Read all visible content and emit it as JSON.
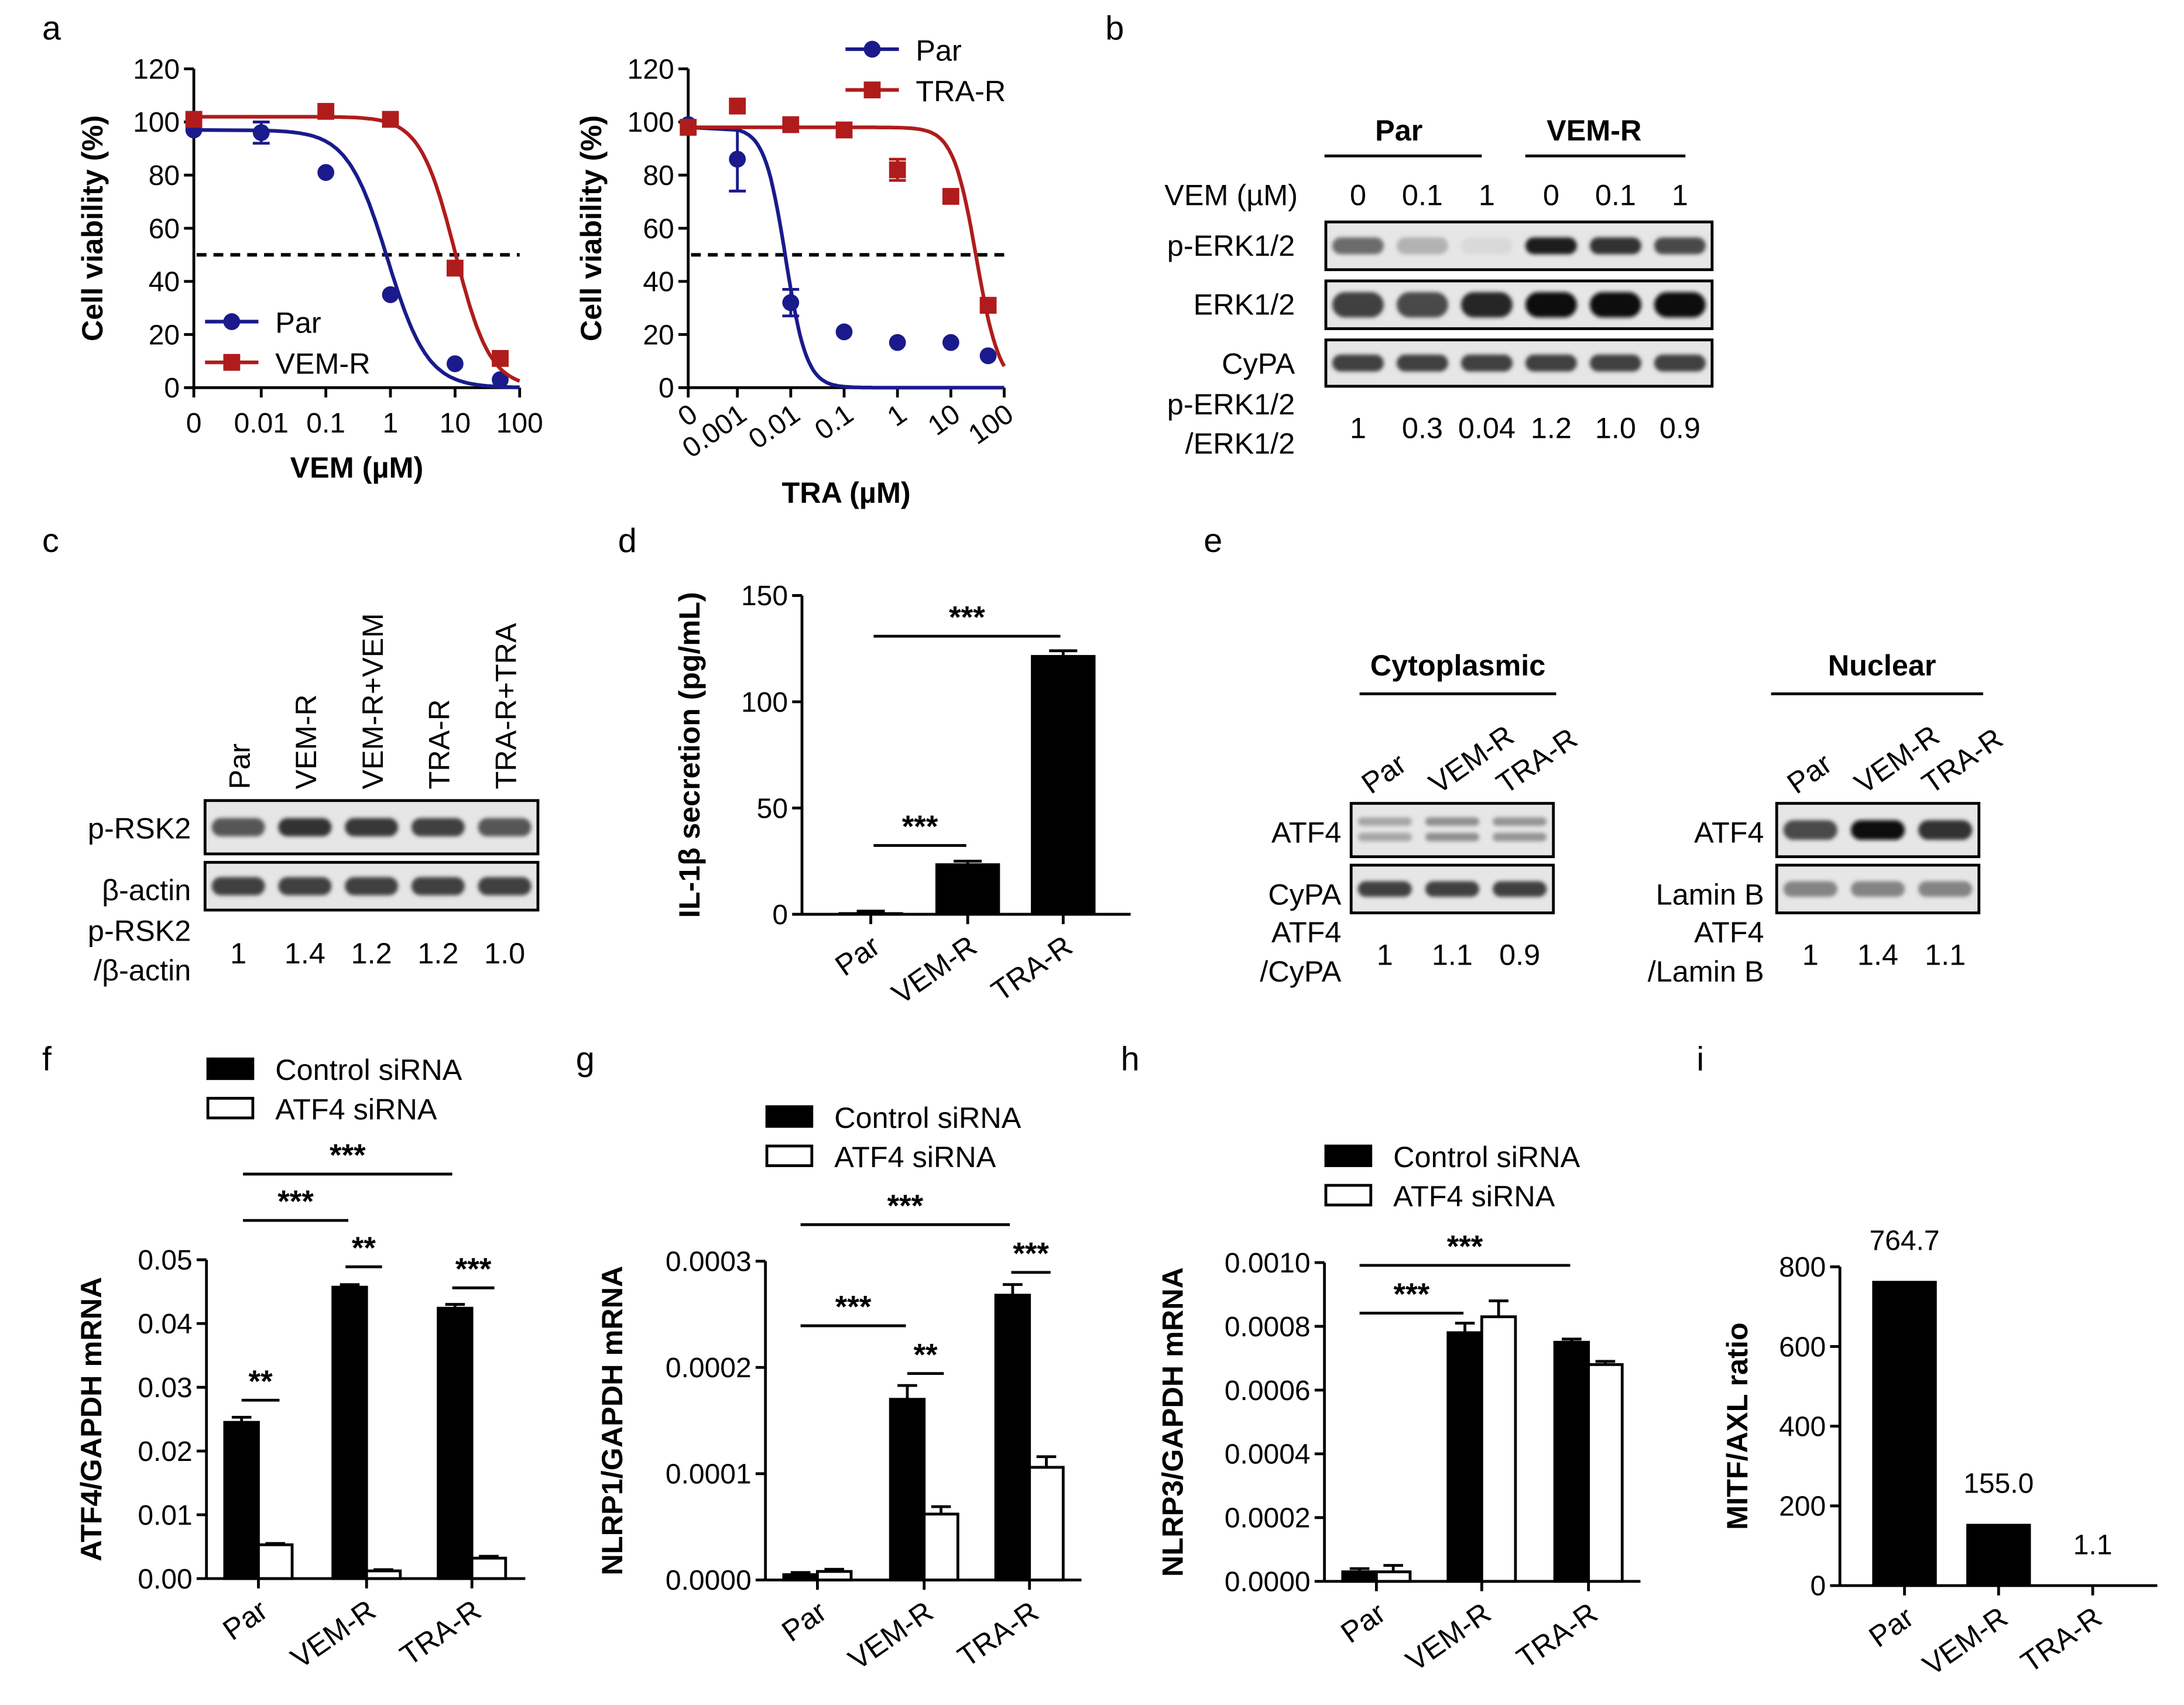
{
  "colors": {
    "par": "#1a1a8c",
    "res": "#b01c1c",
    "black": "#000000",
    "white": "#ffffff"
  },
  "panel_labels": [
    "a",
    "b",
    "c",
    "d",
    "e",
    "f",
    "g",
    "h",
    "i"
  ],
  "chart_data": [
    {
      "id": "a_vem",
      "type": "scatter",
      "title": "",
      "xlabel": "VEM (µM)",
      "ylabel": "Cell viability (%)",
      "x_scale": "log",
      "xticks": [
        "0",
        "0.01",
        "0.1",
        "1",
        "10",
        "100"
      ],
      "yticks": [
        "0",
        "20",
        "40",
        "60",
        "80",
        "100",
        "120"
      ],
      "ylim": [
        0,
        120
      ],
      "reference_line": 50,
      "legend": [
        "Par",
        "VEM-R"
      ],
      "legend_position": "bottom-left",
      "series": [
        {
          "name": "Par",
          "color": "#1a1a8c",
          "marker": "circle",
          "x": [
            0,
            0.01,
            0.1,
            1,
            10,
            50
          ],
          "y": [
            97,
            96,
            81,
            35,
            9,
            3
          ],
          "err": [
            0,
            4,
            0,
            0,
            0,
            0
          ],
          "ic50": 0.9,
          "top": 97,
          "hill": 1.4
        },
        {
          "name": "VEM-R",
          "color": "#b01c1c",
          "marker": "square",
          "x": [
            0,
            0.1,
            1,
            10,
            50
          ],
          "y": [
            101,
            104,
            101,
            45,
            11
          ],
          "err": [
            0,
            0,
            0,
            0,
            0
          ],
          "ic50": 10,
          "top": 102,
          "hill": 1.6
        }
      ]
    },
    {
      "id": "a_tra",
      "type": "scatter",
      "title": "",
      "xlabel": "TRA (µM)",
      "ylabel": "Cell viability (%)",
      "x_scale": "log",
      "xticks": [
        "0",
        "0.001",
        "0.01",
        "0.1",
        "1",
        "10",
        "100"
      ],
      "yticks": [
        "0",
        "20",
        "40",
        "60",
        "80",
        "100",
        "120"
      ],
      "ylim": [
        0,
        120
      ],
      "reference_line": 50,
      "legend": [
        "Par",
        "TRA-R"
      ],
      "legend_position": "top-right",
      "series": [
        {
          "name": "Par",
          "color": "#1a1a8c",
          "marker": "circle",
          "x": [
            0,
            0.001,
            0.01,
            0.1,
            1,
            10,
            50
          ],
          "y": [
            99,
            86,
            32,
            21,
            17,
            17,
            12
          ],
          "err": [
            0,
            12,
            5,
            0,
            0,
            0,
            0
          ],
          "ic50": 0.008,
          "top": 98,
          "hill": 2.2
        },
        {
          "name": "TRA-R",
          "color": "#b01c1c",
          "marker": "square",
          "x": [
            0,
            0.001,
            0.01,
            0.1,
            1,
            10,
            50
          ],
          "y": [
            98,
            106,
            99,
            97,
            82,
            72,
            31
          ],
          "err": [
            0,
            0,
            0,
            0,
            4,
            0,
            0
          ],
          "ic50": 30,
          "top": 98,
          "hill": 2.0
        }
      ]
    },
    {
      "id": "d",
      "type": "bar",
      "title": "",
      "xlabel": "",
      "ylabel": "IL-1β secretion (pg/mL)",
      "categories": [
        "Par",
        "VEM-R",
        "TRA-R"
      ],
      "values": [
        1,
        24,
        122
      ],
      "errors": [
        0.5,
        1,
        2
      ],
      "ylim": [
        0,
        150
      ],
      "yticks": [
        "0",
        "50",
        "100",
        "150"
      ],
      "significance": [
        "***",
        "***"
      ]
    },
    {
      "id": "f",
      "type": "bar",
      "title": "",
      "xlabel": "",
      "ylabel": "ATF4/GAPDH mRNA",
      "categories": [
        "Par",
        "VEM-R",
        "TRA-R"
      ],
      "series": [
        {
          "name": "Control siRNA",
          "values": [
            0.0245,
            0.0457,
            0.0424
          ],
          "errors": [
            0.0008,
            0.0004,
            0.0006
          ]
        },
        {
          "name": "ATF4 siRNA",
          "values": [
            0.0053,
            0.0012,
            0.0032
          ],
          "errors": [
            0.0002,
            0.0002,
            0.0003
          ]
        }
      ],
      "ylim": [
        0,
        0.05
      ],
      "yticks": [
        "0.00",
        "0.01",
        "0.02",
        "0.03",
        "0.04",
        "0.05"
      ],
      "legend": [
        "Control siRNA",
        "ATF4 siRNA"
      ],
      "significance": [
        "***",
        "***",
        "**",
        "**",
        "***"
      ]
    },
    {
      "id": "g",
      "type": "bar",
      "title": "",
      "xlabel": "",
      "ylabel": "NLRP1/GAPDH mRNA",
      "categories": [
        "Par",
        "VEM-R",
        "TRA-R"
      ],
      "series": [
        {
          "name": "Control siRNA",
          "values": [
            5e-06,
            0.00017,
            0.000268
          ],
          "errors": [
            2e-06,
            1.3e-05,
            1e-05
          ]
        },
        {
          "name": "ATF4 siRNA",
          "values": [
            8e-06,
            6.2e-05,
            0.000106
          ],
          "errors": [
            2e-06,
            7e-06,
            1e-05
          ]
        }
      ],
      "ylim": [
        0,
        0.0003
      ],
      "yticks": [
        "0.0000",
        "0.0001",
        "0.0002",
        "0.0003"
      ],
      "legend": [
        "Control siRNA",
        "ATF4 siRNA"
      ],
      "significance": [
        "***",
        "***",
        "**",
        "***"
      ]
    },
    {
      "id": "h",
      "type": "bar",
      "title": "",
      "xlabel": "",
      "ylabel": "NLRP3/GAPDH mRNA",
      "categories": [
        "Par",
        "VEM-R",
        "TRA-R"
      ],
      "series": [
        {
          "name": "Control siRNA",
          "values": [
            3e-05,
            0.00078,
            0.00075
          ],
          "errors": [
            1e-05,
            3e-05,
            1e-05
          ]
        },
        {
          "name": "ATF4 siRNA",
          "values": [
            3e-05,
            0.00083,
            0.00068
          ],
          "errors": [
            2e-05,
            5e-05,
            1e-05
          ]
        }
      ],
      "ylim": [
        0,
        0.001
      ],
      "yticks": [
        "0.0000",
        "0.0002",
        "0.0004",
        "0.0006",
        "0.0008",
        "0.0010"
      ],
      "legend": [
        "Control siRNA",
        "ATF4 siRNA"
      ],
      "significance": [
        "***",
        "***"
      ]
    },
    {
      "id": "i",
      "type": "bar",
      "title": "",
      "xlabel": "",
      "ylabel": "MITF/AXL ratio",
      "categories": [
        "Par",
        "VEM-R",
        "TRA-R"
      ],
      "values": [
        764.7,
        155.0,
        1.1
      ],
      "value_labels": [
        "764.7",
        "155.0",
        "1.1"
      ],
      "ylim": [
        0,
        800
      ],
      "yticks": [
        "0",
        "200",
        "400",
        "600",
        "800"
      ]
    }
  ],
  "blots": {
    "b": {
      "groups": [
        "Par",
        "VEM-R"
      ],
      "treatment_label": "VEM (µM)",
      "lanes": [
        "0",
        "0.1",
        "1",
        "0",
        "0.1",
        "1"
      ],
      "rows": [
        {
          "label": "p-ERK1/2",
          "intensity": [
            0.55,
            0.25,
            0.08,
            0.9,
            0.8,
            0.7
          ]
        },
        {
          "label": "ERK1/2",
          "intensity": [
            0.75,
            0.7,
            0.85,
            0.98,
            0.95,
            0.95
          ]
        },
        {
          "label": "CyPA",
          "intensity": [
            0.75,
            0.75,
            0.75,
            0.75,
            0.75,
            0.75
          ]
        }
      ],
      "ratio_label": [
        "p-ERK1/2",
        "/ERK1/2"
      ],
      "ratios": [
        "1",
        "0.3",
        "0.04",
        "1.2",
        "1.0",
        "0.9"
      ]
    },
    "c": {
      "lanes": [
        "Par",
        "VEM-R",
        "VEM-R+VEM",
        "TRA-R",
        "TRA-R+TRA"
      ],
      "rows": [
        {
          "label": "p-RSK2",
          "intensity": [
            0.65,
            0.8,
            0.78,
            0.75,
            0.65
          ]
        },
        {
          "label": "β-actin",
          "intensity": [
            0.75,
            0.75,
            0.75,
            0.75,
            0.75
          ]
        }
      ],
      "ratio_label": [
        "p-RSK2",
        "/β-actin"
      ],
      "ratios": [
        "1",
        "1.4",
        "1.2",
        "1.2",
        "1.0"
      ]
    },
    "e_cyto": {
      "title": "Cytoplasmic",
      "lanes": [
        "Par",
        "VEM-R",
        "TRA-R"
      ],
      "rows": [
        {
          "label": "ATF4",
          "intensity": [
            0.3,
            0.4,
            0.38
          ],
          "double": true
        },
        {
          "label": "CyPA",
          "intensity": [
            0.75,
            0.75,
            0.75
          ]
        }
      ],
      "ratio_label": [
        "ATF4",
        "/CyPA"
      ],
      "ratios": [
        "1",
        "1.1",
        "0.9"
      ]
    },
    "e_nuc": {
      "title": "Nuclear",
      "lanes": [
        "Par",
        "VEM-R",
        "TRA-R"
      ],
      "rows": [
        {
          "label": "ATF4",
          "intensity": [
            0.7,
            0.98,
            0.8
          ]
        },
        {
          "label": "Lamin B",
          "intensity": [
            0.45,
            0.45,
            0.45
          ]
        }
      ],
      "ratio_label": [
        "ATF4",
        "/Lamin B"
      ],
      "ratios": [
        "1",
        "1.4",
        "1.1"
      ]
    }
  }
}
